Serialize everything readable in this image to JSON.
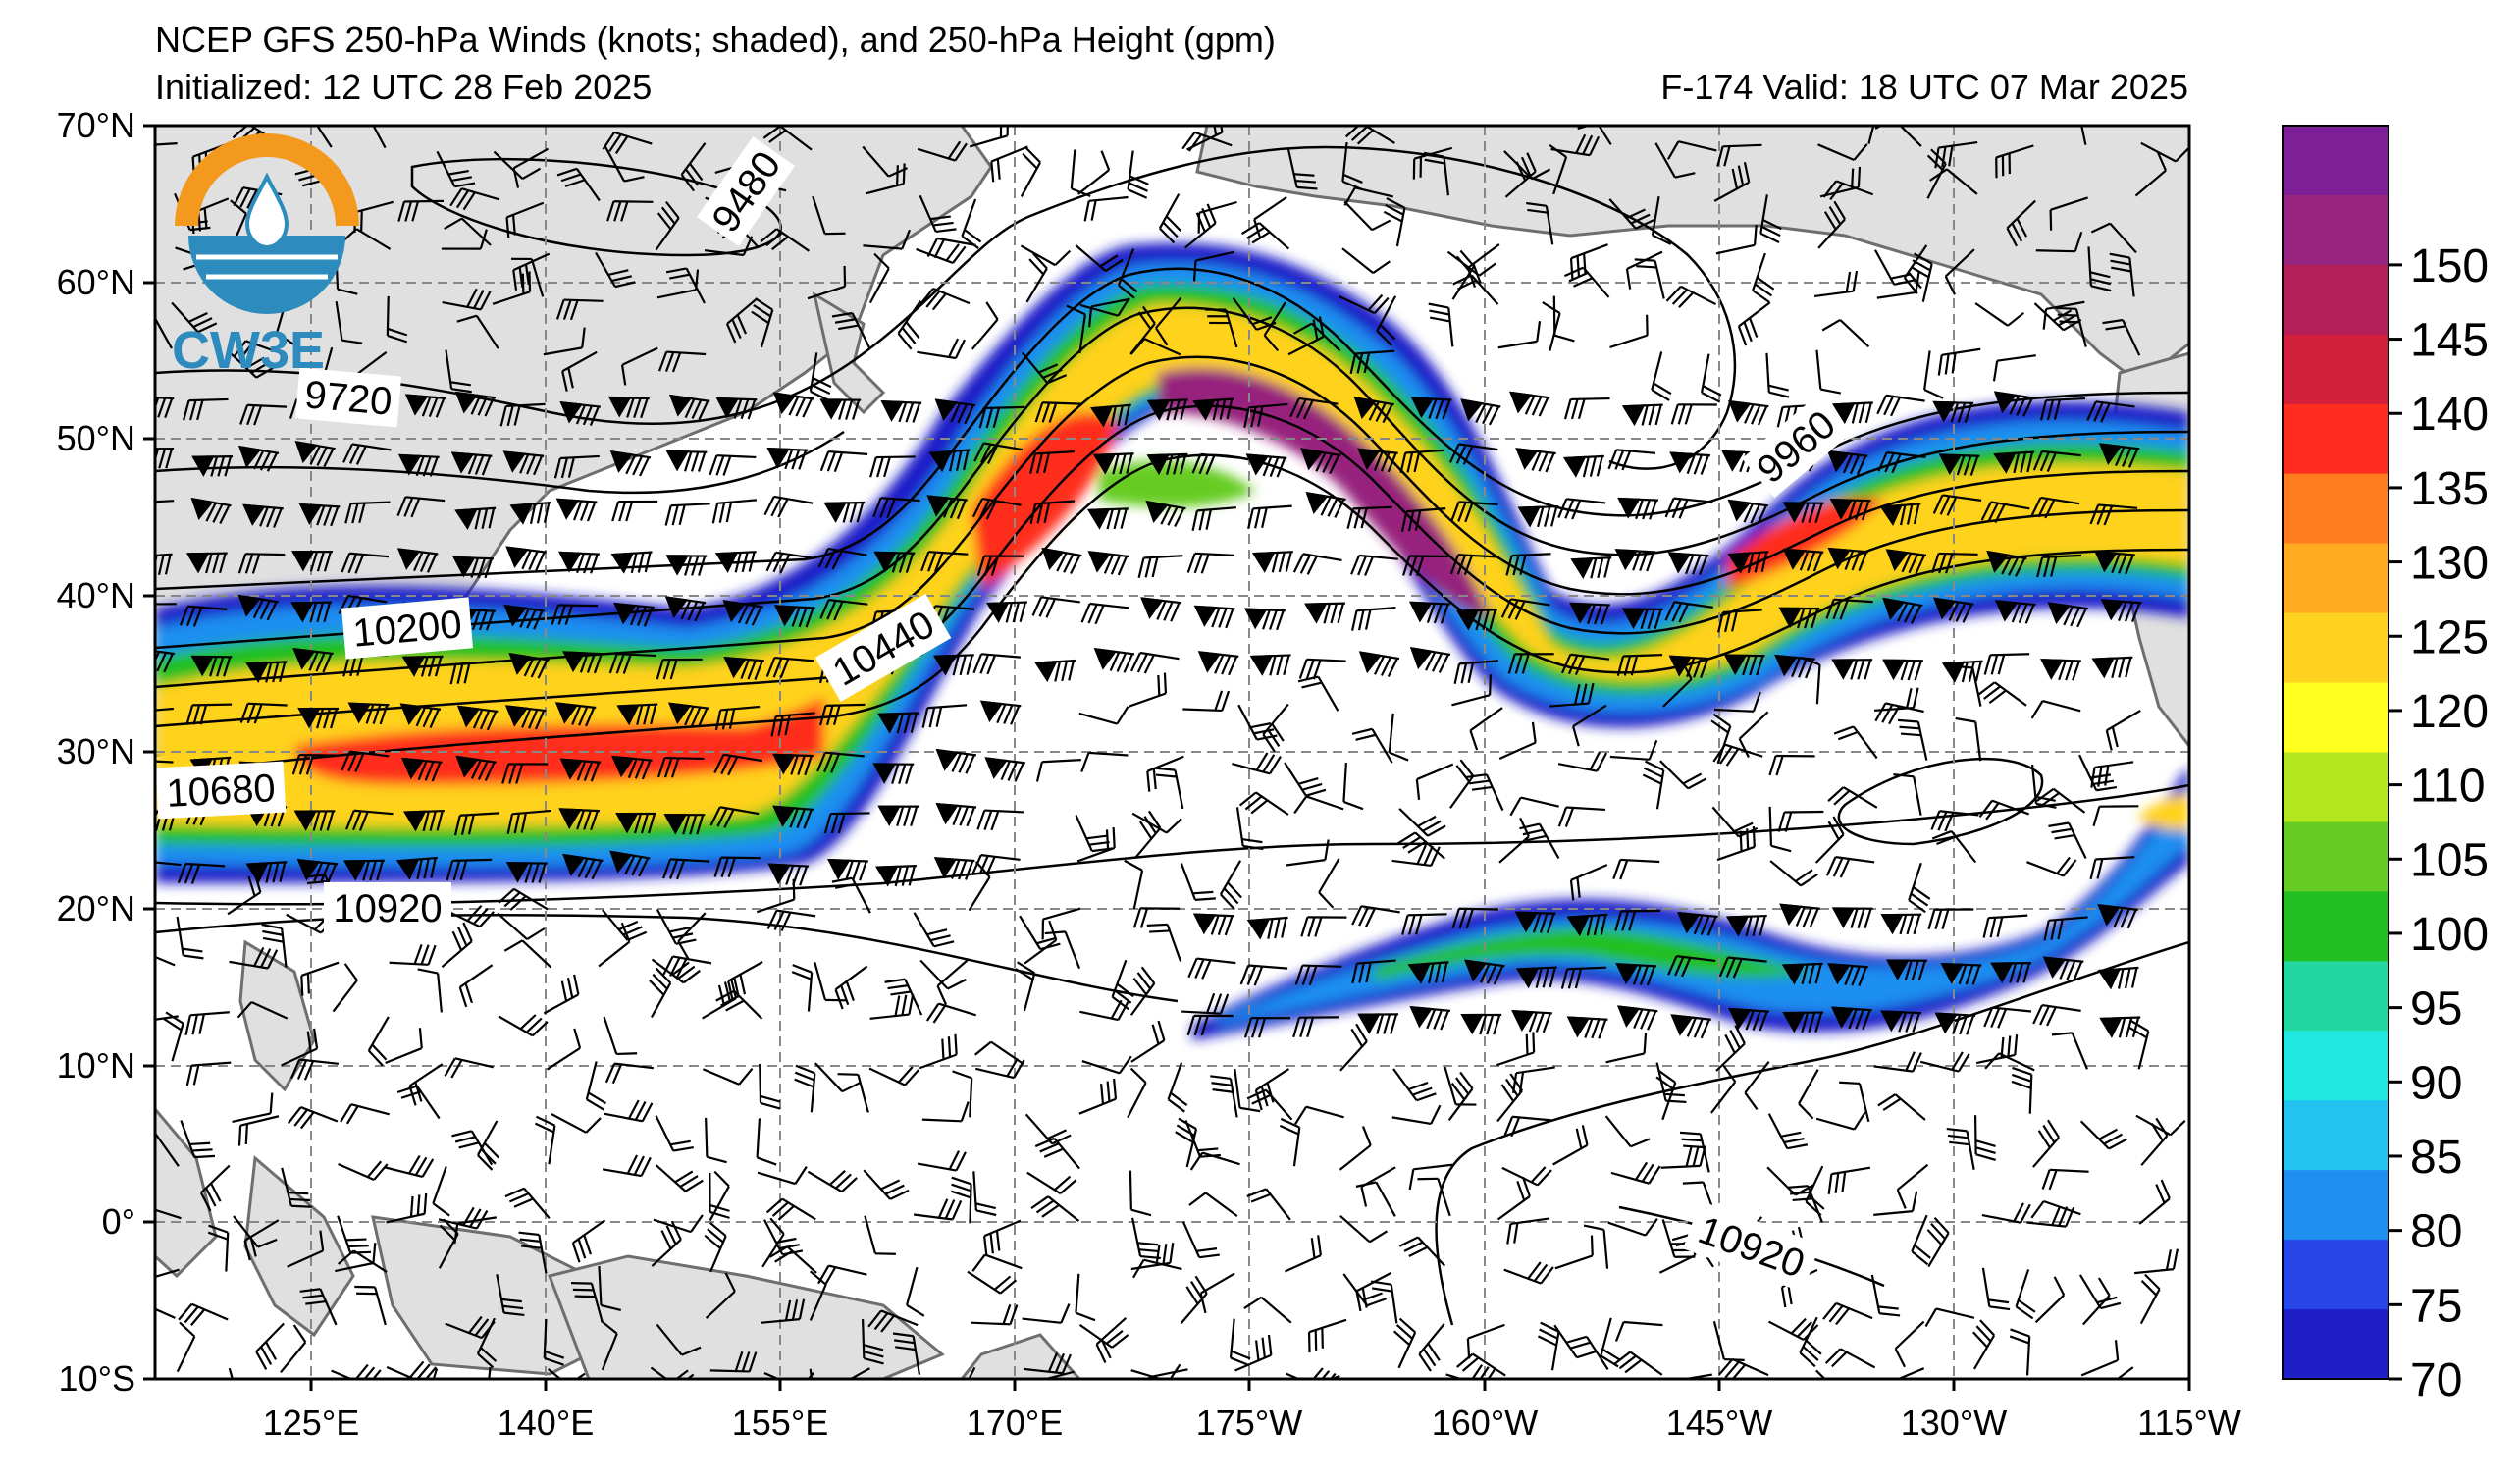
{
  "header": {
    "title": "NCEP GFS 250-hPa Winds (knots; shaded), and 250-hPa Height (gpm)",
    "initialized": "Initialized: 12 UTC 28 Feb 2025",
    "valid": "F-174  Valid: 18 UTC 07 Mar 2025"
  },
  "logo": {
    "text": "CW3E"
  },
  "axes": {
    "lat_labels": [
      "70°N",
      "60°N",
      "50°N",
      "40°N",
      "30°N",
      "20°N",
      "10°N",
      "0°",
      "10°S"
    ],
    "lon_labels": [
      "125°E",
      "140°E",
      "155°E",
      "170°E",
      "175°W",
      "160°W",
      "145°W",
      "130°W",
      "115°W"
    ]
  },
  "contour_labels": [
    "9480",
    "9720",
    "9960",
    "10200",
    "10440",
    "10680",
    "10920",
    "10920"
  ],
  "colorbar": {
    "ticks": [
      "70",
      "75",
      "80",
      "85",
      "90",
      "95",
      "100",
      "105",
      "110",
      "120",
      "125",
      "130",
      "135",
      "140",
      "145",
      "150"
    ],
    "colors": [
      "#1f1fc8",
      "#2646e8",
      "#1f8ff0",
      "#23c3f0",
      "#1fe8e0",
      "#23d8a0",
      "#23c023",
      "#66cc23",
      "#b4e61f",
      "#ffff1f",
      "#ffd21f",
      "#ffaa1f",
      "#ff7d1f",
      "#ff2d1f",
      "#d21f3c",
      "#b41f5a",
      "#96237d",
      "#7d1f96"
    ]
  },
  "colors": {
    "land": "#e0e0e0",
    "coast": "#6e6e6e",
    "grid": "#888888"
  }
}
